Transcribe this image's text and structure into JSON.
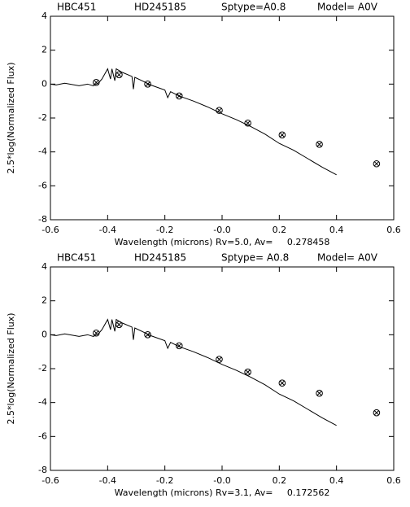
{
  "chart_data": [
    {
      "type": "line",
      "header": [
        "HBC451",
        "HD245185",
        "Sptype=A0.8",
        "Model= A0V"
      ],
      "xlabel": "Wavelength (microns) Rv=5.0, Av=     0.278458",
      "ylabel": "2.5*log(Normalized Flux)",
      "xlim": [
        -0.6,
        0.6
      ],
      "xticks": [
        -0.6,
        -0.4,
        -0.2,
        {
          "value": 0,
          "label": "-0.0"
        },
        0.2,
        0.4,
        0.6
      ],
      "ylim": [
        -8,
        4
      ],
      "yticks": [
        -8,
        -6,
        -4,
        -2,
        0,
        2,
        4
      ],
      "color": "#000000",
      "line": {
        "x": [
          -0.6,
          -0.58,
          -0.55,
          -0.5,
          -0.47,
          -0.45,
          -0.43,
          -0.42,
          -0.41,
          -0.4,
          -0.39,
          -0.385,
          -0.375,
          -0.37,
          -0.36,
          -0.35,
          -0.315,
          -0.31,
          -0.305,
          -0.28,
          -0.25,
          -0.2,
          -0.19,
          -0.18,
          -0.15,
          -0.1,
          -0.05,
          0,
          0.05,
          0.1,
          0.15,
          0.2,
          0.25,
          0.3,
          0.35,
          0.4
        ],
        "values": [
          0,
          -0.05,
          0.05,
          -0.1,
          0,
          -0.1,
          0.1,
          0.3,
          0.6,
          0.9,
          0.3,
          0.9,
          0.2,
          0.9,
          0.8,
          0.7,
          0.45,
          -0.3,
          0.4,
          0.2,
          -0.05,
          -0.35,
          -0.8,
          -0.45,
          -0.7,
          -1.0,
          -1.35,
          -1.75,
          -2.1,
          -2.5,
          -2.95,
          -3.5,
          -3.9,
          -4.4,
          -4.9,
          -5.35
        ]
      },
      "points": {
        "x": [
          -0.44,
          -0.36,
          -0.26,
          -0.15,
          -0.01,
          0.09,
          0.21,
          0.34,
          0.54
        ],
        "values": [
          0.1,
          0.55,
          0.0,
          -0.7,
          -1.55,
          -2.3,
          -3.0,
          -3.55,
          -4.7
        ]
      }
    },
    {
      "type": "line",
      "header": [
        "HBC451",
        "HD245185",
        "Sptype= A0.8",
        "Model= A0V"
      ],
      "xlabel": "Wavelength (microns) Rv=3.1, Av=     0.172562",
      "ylabel": "2.5*log(Normalized Flux)",
      "xlim": [
        -0.6,
        0.6
      ],
      "xticks": [
        -0.6,
        -0.4,
        -0.2,
        {
          "value": 0,
          "label": "-0.0"
        },
        0.2,
        0.4,
        0.6
      ],
      "ylim": [
        -8,
        4
      ],
      "yticks": [
        -8,
        -6,
        -4,
        -2,
        0,
        2,
        4
      ],
      "color": "#000000",
      "line": {
        "x": [
          -0.6,
          -0.58,
          -0.55,
          -0.5,
          -0.47,
          -0.45,
          -0.43,
          -0.42,
          -0.41,
          -0.4,
          -0.39,
          -0.385,
          -0.375,
          -0.37,
          -0.36,
          -0.35,
          -0.315,
          -0.31,
          -0.305,
          -0.28,
          -0.25,
          -0.2,
          -0.19,
          -0.18,
          -0.15,
          -0.1,
          -0.05,
          0,
          0.05,
          0.1,
          0.15,
          0.2,
          0.25,
          0.3,
          0.35,
          0.4
        ],
        "values": [
          0,
          -0.05,
          0.05,
          -0.1,
          0,
          -0.1,
          0.1,
          0.3,
          0.6,
          0.9,
          0.3,
          0.9,
          0.2,
          0.9,
          0.8,
          0.7,
          0.45,
          -0.3,
          0.4,
          0.2,
          -0.05,
          -0.35,
          -0.8,
          -0.45,
          -0.7,
          -1.0,
          -1.35,
          -1.75,
          -2.1,
          -2.5,
          -2.95,
          -3.5,
          -3.9,
          -4.4,
          -4.9,
          -5.35
        ]
      },
      "points": {
        "x": [
          -0.44,
          -0.36,
          -0.26,
          -0.15,
          -0.01,
          0.09,
          0.21,
          0.34,
          0.54
        ],
        "values": [
          0.1,
          0.6,
          0.0,
          -0.65,
          -1.45,
          -2.2,
          -2.85,
          -3.45,
          -4.6
        ]
      }
    }
  ]
}
